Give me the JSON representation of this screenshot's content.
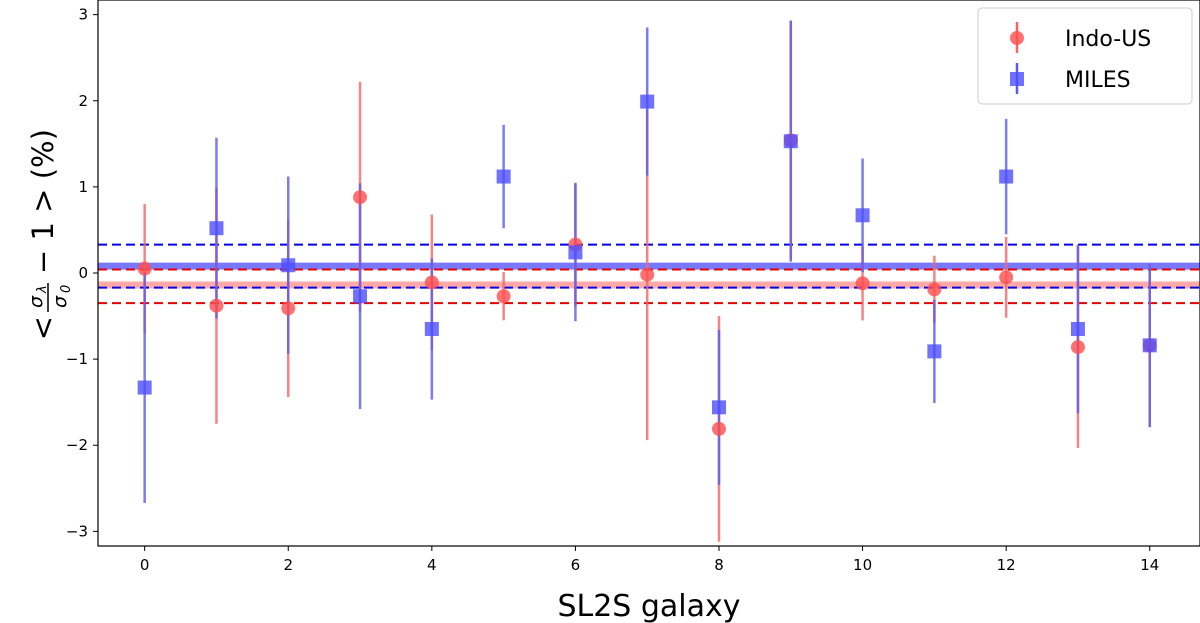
{
  "chart_data": {
    "type": "scatter",
    "title": "",
    "xlabel": "SL2S galaxy",
    "ylabel_parts": {
      "lt": "<",
      "num": "σ",
      "num_sub": "λ",
      "den": "σ",
      "den_sub": "0",
      "rest": "− 1 >  (%)"
    },
    "xlim": [
      -0.65,
      14.7
    ],
    "ylim": [
      -3.17,
      3.17
    ],
    "x_ticks": [
      0,
      2,
      4,
      6,
      8,
      10,
      12,
      14
    ],
    "y_ticks": [
      -3,
      -2,
      -1,
      0,
      1,
      2,
      3
    ],
    "y_tick_labels": [
      "−3",
      "−2",
      "−1",
      "0",
      "1",
      "2",
      "3"
    ],
    "legend_position": "top-right",
    "series": [
      {
        "name": "Indo-US",
        "marker": "circle",
        "color": "#ff4d4d",
        "errcolor": "#f26666",
        "x": [
          0,
          1,
          2,
          3,
          4,
          5,
          6,
          7,
          8,
          9,
          10,
          11,
          12,
          13,
          14
        ],
        "y": [
          0.05,
          -0.38,
          -0.41,
          0.88,
          -0.11,
          -0.27,
          0.33,
          -0.02,
          -1.81,
          1.54,
          -0.12,
          -0.19,
          -0.05,
          -0.86,
          -0.84
        ],
        "err": [
          0.75,
          1.37,
          1.03,
          1.34,
          0.79,
          0.28,
          0.72,
          1.92,
          1.31,
          1.39,
          0.43,
          0.39,
          0.47,
          1.17,
          0.95
        ]
      },
      {
        "name": "MILES",
        "marker": "square",
        "color": "#4d4dff",
        "errcolor": "#5a5af0",
        "x": [
          0,
          1,
          2,
          3,
          4,
          5,
          6,
          7,
          8,
          9,
          10,
          11,
          12,
          13,
          14
        ],
        "y": [
          -1.33,
          0.52,
          0.09,
          -0.27,
          -0.65,
          1.12,
          0.24,
          1.99,
          -1.56,
          1.53,
          0.67,
          -0.91,
          1.12,
          -0.65,
          -0.84
        ],
        "err": [
          1.34,
          1.05,
          1.03,
          1.31,
          0.82,
          0.6,
          0.8,
          0.86,
          0.9,
          1.4,
          0.66,
          0.6,
          0.67,
          0.98,
          0.95
        ]
      }
    ],
    "reference_lines": [
      {
        "name": "miles-mean",
        "y": 0.08,
        "color": "#6a6aff",
        "style": "band"
      },
      {
        "name": "indo-mean",
        "y": -0.14,
        "color": "#ffa0a0",
        "style": "band"
      },
      {
        "name": "miles-upper",
        "y": 0.33,
        "color": "#0000e6",
        "style": "dashed"
      },
      {
        "name": "miles-lower",
        "y": -0.17,
        "color": "#0000e6",
        "style": "dashed"
      },
      {
        "name": "indo-upper",
        "y": 0.04,
        "color": "#e60000",
        "style": "dashed"
      },
      {
        "name": "indo-lower",
        "y": -0.35,
        "color": "#e60000",
        "style": "dashed"
      }
    ]
  }
}
